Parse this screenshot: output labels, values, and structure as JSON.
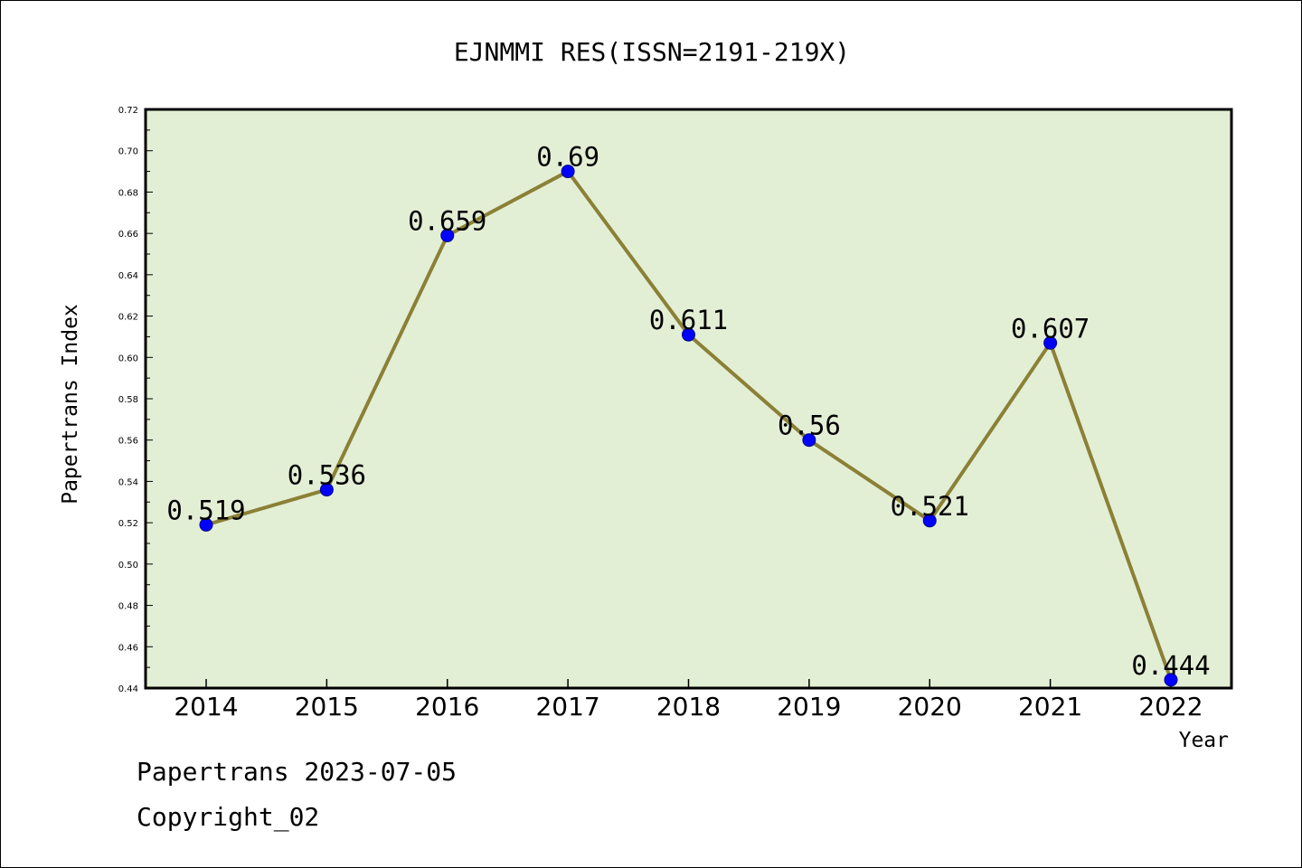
{
  "chart_data": {
    "type": "line",
    "title": "EJNMMI RES(ISSN=2191-219X)",
    "xlabel": "Year",
    "ylabel": "Papertrans Index",
    "categories": [
      "2014",
      "2015",
      "2016",
      "2017",
      "2018",
      "2019",
      "2020",
      "2021",
      "2022"
    ],
    "values": [
      0.519,
      0.536,
      0.659,
      0.69,
      0.611,
      0.56,
      0.521,
      0.607,
      0.444
    ],
    "data_labels": [
      "0.519",
      "0.536",
      "0.659",
      "0.69",
      "0.611",
      "0.56",
      "0.521",
      "0.607",
      "0.444"
    ],
    "ylim": [
      0.44,
      0.72
    ],
    "yticks": [
      "0.44",
      "0.46",
      "0.48",
      "0.50",
      "0.52",
      "0.54",
      "0.56",
      "0.58",
      "0.60",
      "0.62",
      "0.64",
      "0.66",
      "0.68",
      "0.70",
      "0.72"
    ],
    "grid": false,
    "colors": {
      "plot_background": "#e2efd5",
      "line": "#8b8035",
      "marker": "#0000ff",
      "marker_edge": "#00008b"
    }
  },
  "footer": {
    "source": "Papertrans 2023-07-05",
    "copyright": "Copyright_02"
  }
}
